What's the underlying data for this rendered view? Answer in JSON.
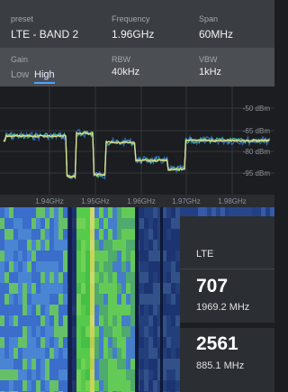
{
  "header": {
    "preset": {
      "label": "preset",
      "value": "LTE - BAND 2"
    },
    "frequency": {
      "label": "Frequency",
      "value": "1.96GHz"
    },
    "span": {
      "label": "Span",
      "value": "60MHz"
    }
  },
  "settings": {
    "gain": {
      "label": "Gain",
      "options": [
        "Low",
        "High"
      ],
      "selected": "High"
    },
    "rbw": {
      "label": "RBW",
      "value": "40kHz"
    },
    "vbw": {
      "label": "VBW",
      "value": "1kHz"
    }
  },
  "spectrum": {
    "y_labels": [
      "-50 dBm",
      "-65 dBm",
      "-80 dBm",
      "-95 dBm"
    ],
    "x_labels": [
      "1.94GHz",
      "1.95GHz",
      "1.96GHz",
      "1.97GHz",
      "1.98GHz"
    ]
  },
  "detections": {
    "technology": "LTE",
    "items": [
      {
        "channel": "707",
        "frequency": "1969.2 MHz"
      },
      {
        "channel": "2561",
        "frequency": "885.1 MHz"
      }
    ]
  }
}
